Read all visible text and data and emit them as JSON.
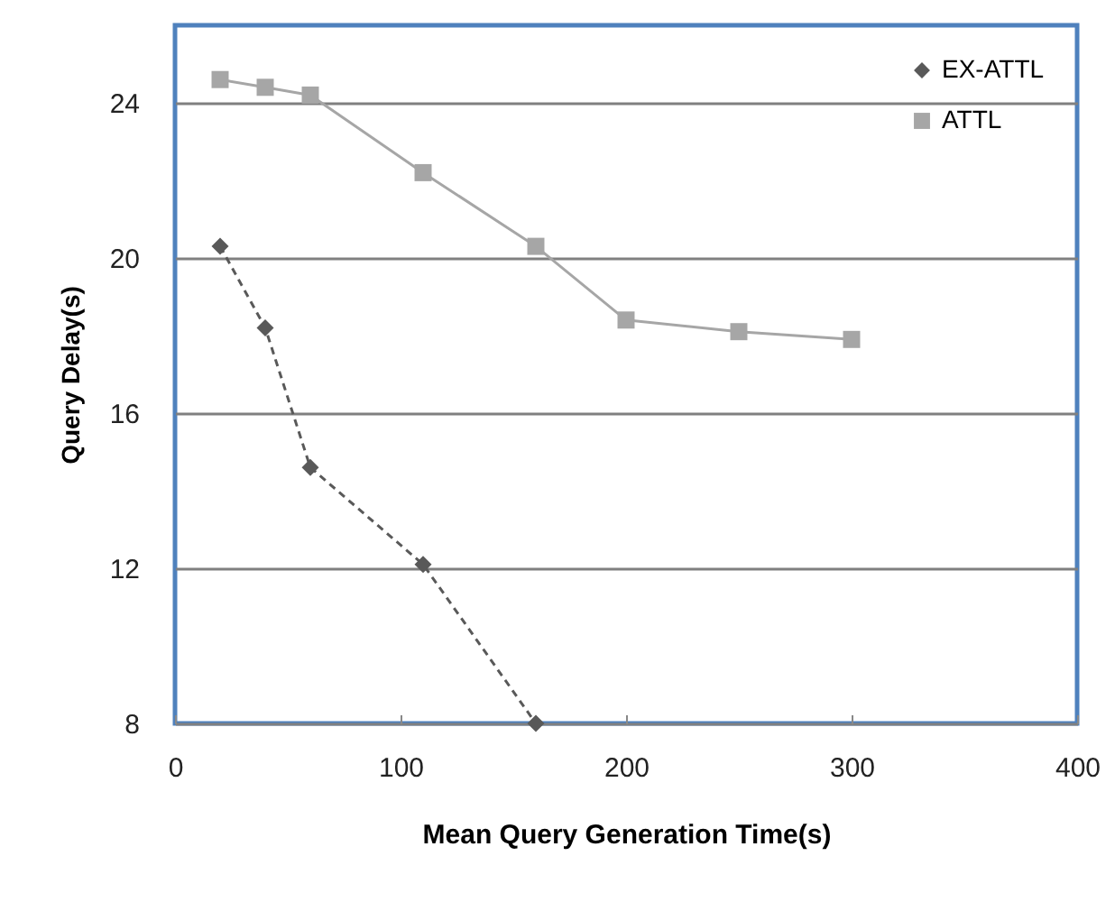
{
  "chart_data": {
    "type": "line",
    "xlabel": "Mean Query Generation Time(s)",
    "ylabel": "Query Delay(s)",
    "x": [
      20,
      40,
      60,
      110,
      160,
      200,
      250,
      300
    ],
    "series": [
      {
        "name": "EX-ATTL",
        "color": "#595959",
        "marker": "diamond",
        "line_style": "dashed",
        "x": [
          20,
          40,
          60,
          110,
          160
        ],
        "values": [
          20.3,
          18.2,
          14.6,
          12.1,
          8.0
        ]
      },
      {
        "name": "ATTL",
        "color": "#a6a6a6",
        "marker": "square",
        "line_style": "solid",
        "values": [
          24.6,
          24.4,
          24.2,
          22.2,
          20.3,
          18.4,
          18.1,
          17.9
        ]
      }
    ],
    "xlim": [
      0,
      400
    ],
    "xticks": [
      0,
      100,
      200,
      300,
      400
    ],
    "ylim": [
      8,
      26
    ],
    "yticks": [
      8,
      12,
      16,
      20,
      24
    ],
    "grid": "y",
    "legend": "top right"
  }
}
